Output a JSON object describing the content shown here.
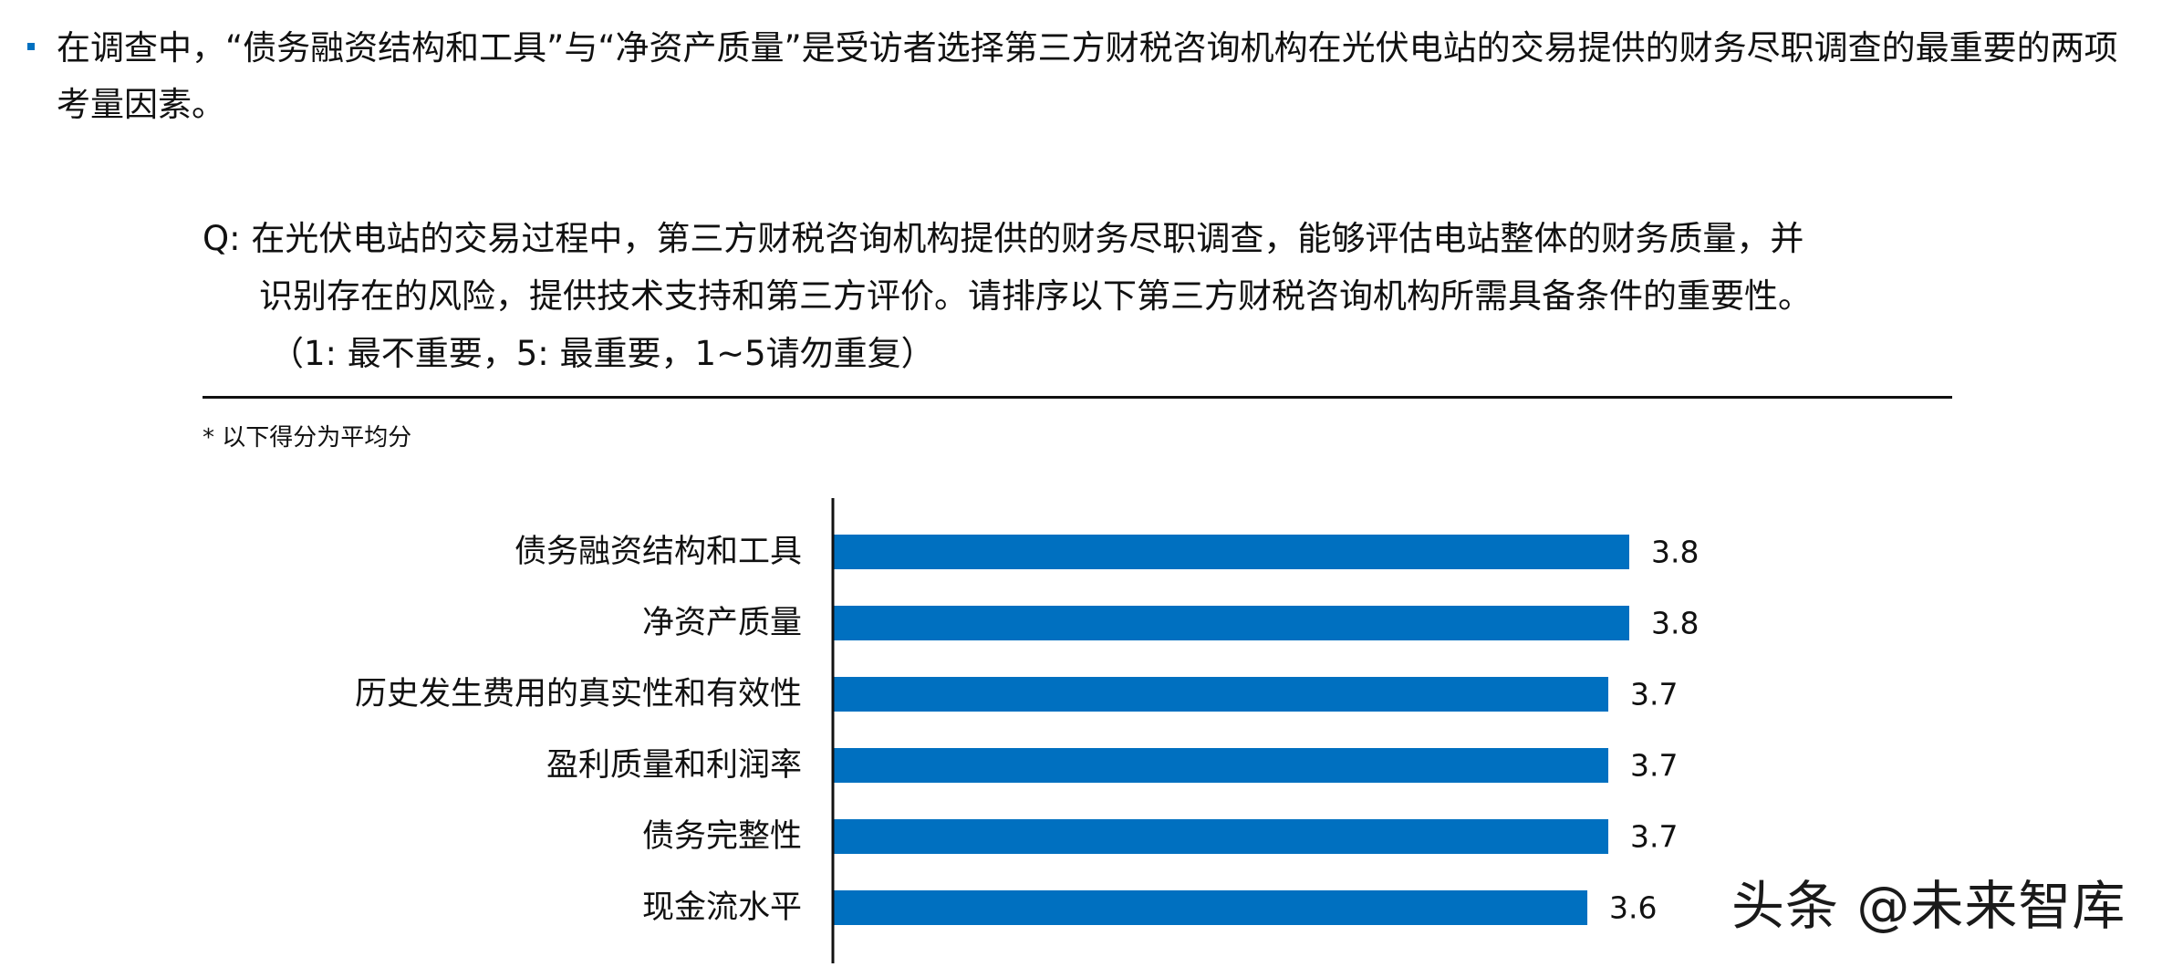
{
  "bullet_text": "在调查中，“债务融资结构和工具”与“净资产质量”是受访者选择第三方财税咨询机构在光伏电站的交易提供的财务尽职调查的最重要的两项考量因素。",
  "question": {
    "line1": "Q: 在光伏电站的交易过程中，第三方财税咨询机构提供的财务尽职调查，能够评估电站整体的财务质量，并",
    "line2": "识别存在的风险，提供技术支持和第三方评价。请排序以下第三方财税咨询机构所需具备条件的重要性。",
    "line3": "（1: 最不重要，5: 最重要，1~5请勿重复）"
  },
  "note": "* 以下得分为平均分",
  "watermark": "头条 @未来智库",
  "colors": {
    "bar": "#0070c0",
    "bullet": "#0070c0",
    "axis": "#111111"
  },
  "chart_data": {
    "type": "bar",
    "orientation": "horizontal",
    "categories": [
      "债务融资结构和工具",
      "净资产质量",
      "历史发生费用的真实性和有效性",
      "盈利质量和利润率",
      "债务完整性",
      "现金流水平"
    ],
    "values": [
      3.8,
      3.8,
      3.7,
      3.7,
      3.7,
      3.6
    ],
    "data_labels": [
      "3.8",
      "3.8",
      "3.7",
      "3.7",
      "3.7",
      "3.6"
    ],
    "grid": false,
    "legend": "none"
  }
}
